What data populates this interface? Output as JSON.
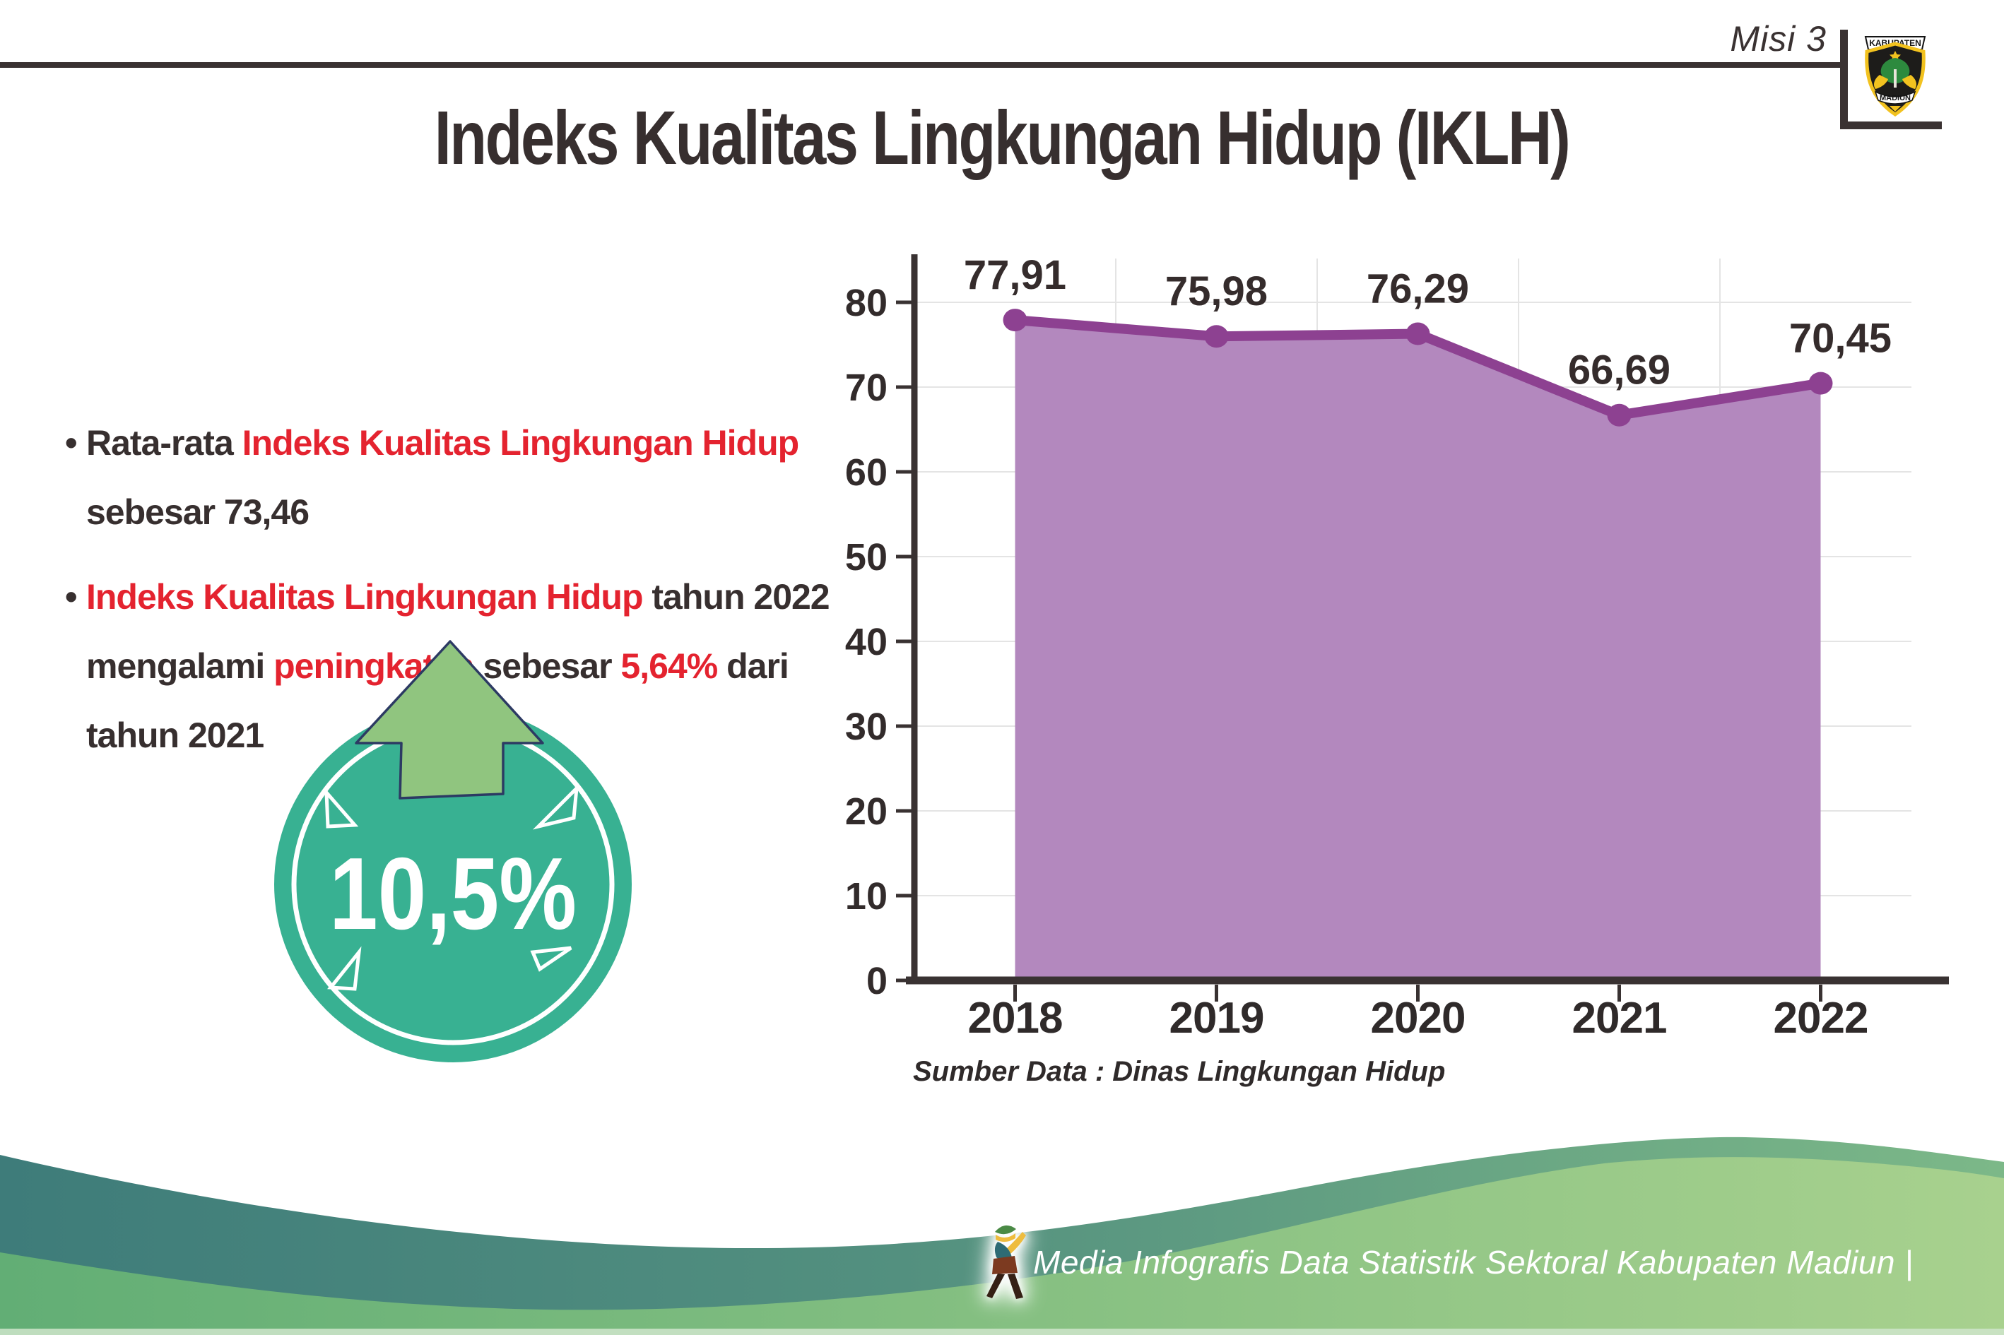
{
  "header": {
    "misi_label": "Misi 3",
    "title": "Indeks Kualitas Lingkungan Hidup (IKLH)"
  },
  "logo": {
    "top_text": "KABUPATEN",
    "bottom_text": "MADIUN"
  },
  "bullets": [
    {
      "lines": [
        [
          {
            "t": "Rata-rata ",
            "c": "dark"
          },
          {
            "t": "Indeks Kualitas Lingkungan Hidup",
            "c": "red"
          }
        ],
        [
          {
            "t": "sebesar 73,46",
            "c": "dark"
          }
        ]
      ]
    },
    {
      "lines": [
        [
          {
            "t": "Indeks Kualitas Lingkungan Hidup",
            "c": "red"
          },
          {
            "t": " tahun 2022",
            "c": "dark"
          }
        ],
        [
          {
            "t": "mengalami ",
            "c": "dark"
          },
          {
            "t": "peningkatan",
            "c": "red"
          },
          {
            "t": " sebesar ",
            "c": "dark"
          },
          {
            "t": "5,64%",
            "c": "red"
          },
          {
            "t": " dari",
            "c": "dark"
          }
        ],
        [
          {
            "t": "tahun 2021",
            "c": "dark"
          }
        ]
      ]
    }
  ],
  "badge": {
    "value": "10,5%"
  },
  "chart_data": {
    "type": "area",
    "categories": [
      "2018",
      "2019",
      "2020",
      "2021",
      "2022"
    ],
    "values": [
      77.91,
      75.98,
      76.29,
      66.69,
      70.45
    ],
    "point_labels": [
      "77,91",
      "75,98",
      "76,29",
      "66,69",
      "70,45"
    ],
    "title": "",
    "xlabel": "",
    "ylabel": "",
    "ylim": [
      0,
      80
    ],
    "ytick_step": 10,
    "grid": "on",
    "legend": "none",
    "line_color": "#8d4191",
    "fill_color": "#b388be"
  },
  "source_note": "Sumber Data : Dinas Lingkungan Hidup",
  "footer": {
    "text": "Media Infografis Data Statistik Sektoral Kabupaten Madiun |"
  },
  "colors": {
    "accent_red": "#e4232f",
    "dark_text": "#372f2f",
    "badge_teal": "#38b192",
    "arrow_green": "#90c57f",
    "wave_teal_start": "#3e7c7a",
    "wave_teal_end": "#7cb888",
    "wave_light_start": "#62ae75",
    "wave_light_end": "#a8d18e"
  }
}
